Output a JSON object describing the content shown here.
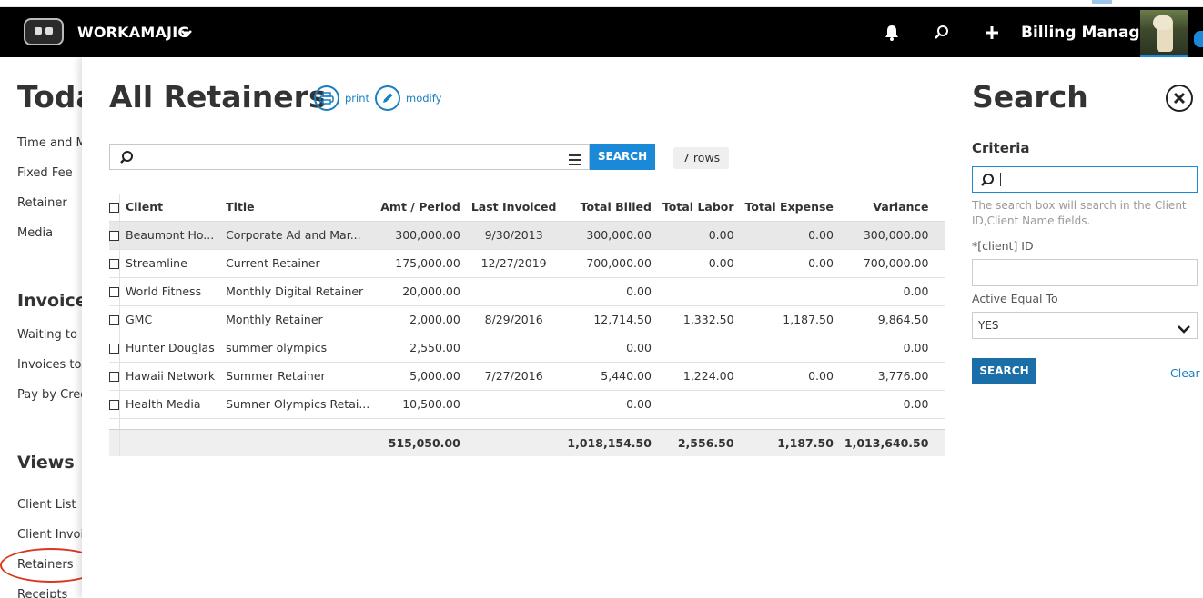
{
  "header": {
    "brand": "WORKAMAJIG",
    "user_name": "Billing Manager",
    "icons": [
      "bell-icon",
      "search-icon",
      "plus-icon",
      "chevron-down-icon"
    ]
  },
  "leftnav": {
    "title": "Toda",
    "items_top": [
      "Time and Ma",
      "Fixed Fee",
      "Retainer",
      "Media"
    ],
    "invoices_title": "Invoices",
    "invoices_items": [
      "Waiting to b",
      "Invoices to P",
      "Pay by Credi"
    ],
    "views_title": "Views",
    "views_items": [
      "Client List",
      "Client Invoic",
      "Retainers",
      "Receipts"
    ]
  },
  "main": {
    "title": "All Retainers",
    "print_label": "print",
    "modify_label": "modify",
    "search_button": "SEARCH",
    "rows_badge": "7 rows",
    "columns": [
      "Client",
      "Title",
      "Amt / Period",
      "Last Invoiced",
      "Total Billed",
      "Total Labor",
      "Total Expense",
      "Variance"
    ],
    "rows": [
      {
        "client": "Beaumont Ho...",
        "title": "Corporate Ad and Mar...",
        "amt": "300,000.00",
        "last": "9/30/2013",
        "billed": "300,000.00",
        "labor": "0.00",
        "expense": "0.00",
        "variance": "300,000.00"
      },
      {
        "client": "Streamline",
        "title": "Current Retainer",
        "amt": "175,000.00",
        "last": "12/27/2019",
        "billed": "700,000.00",
        "labor": "0.00",
        "expense": "0.00",
        "variance": "700,000.00"
      },
      {
        "client": "World Fitness",
        "title": "Monthly Digital Retainer",
        "amt": "20,000.00",
        "last": "",
        "billed": "0.00",
        "labor": "",
        "expense": "",
        "variance": "0.00"
      },
      {
        "client": "GMC",
        "title": "Monthly Retainer",
        "amt": "2,000.00",
        "last": "8/29/2016",
        "billed": "12,714.50",
        "labor": "1,332.50",
        "expense": "1,187.50",
        "variance": "9,864.50"
      },
      {
        "client": "Hunter Douglas",
        "title": "summer olympics",
        "amt": "2,550.00",
        "last": "",
        "billed": "0.00",
        "labor": "",
        "expense": "",
        "variance": "0.00"
      },
      {
        "client": "Hawaii Network",
        "title": "Summer Retainer",
        "amt": "5,000.00",
        "last": "7/27/2016",
        "billed": "5,440.00",
        "labor": "1,224.00",
        "expense": "0.00",
        "variance": "3,776.00"
      },
      {
        "client": "Health Media",
        "title": "Sumner Olympics Retai...",
        "amt": "10,500.00",
        "last": "",
        "billed": "0.00",
        "labor": "",
        "expense": "",
        "variance": "0.00"
      }
    ],
    "totals": {
      "amt": "515,050.00",
      "billed": "1,018,154.50",
      "labor": "2,556.50",
      "expense": "1,187.50",
      "variance": "1,013,640.50"
    }
  },
  "search_panel": {
    "title": "Search",
    "criteria": "Criteria",
    "help": "The search box will search in the Client ID,Client Name fields.",
    "id_label": "*[client] ID",
    "active_label": "Active Equal To",
    "active_value": "YES",
    "search_button": "SEARCH",
    "clear_label": "Clear"
  }
}
